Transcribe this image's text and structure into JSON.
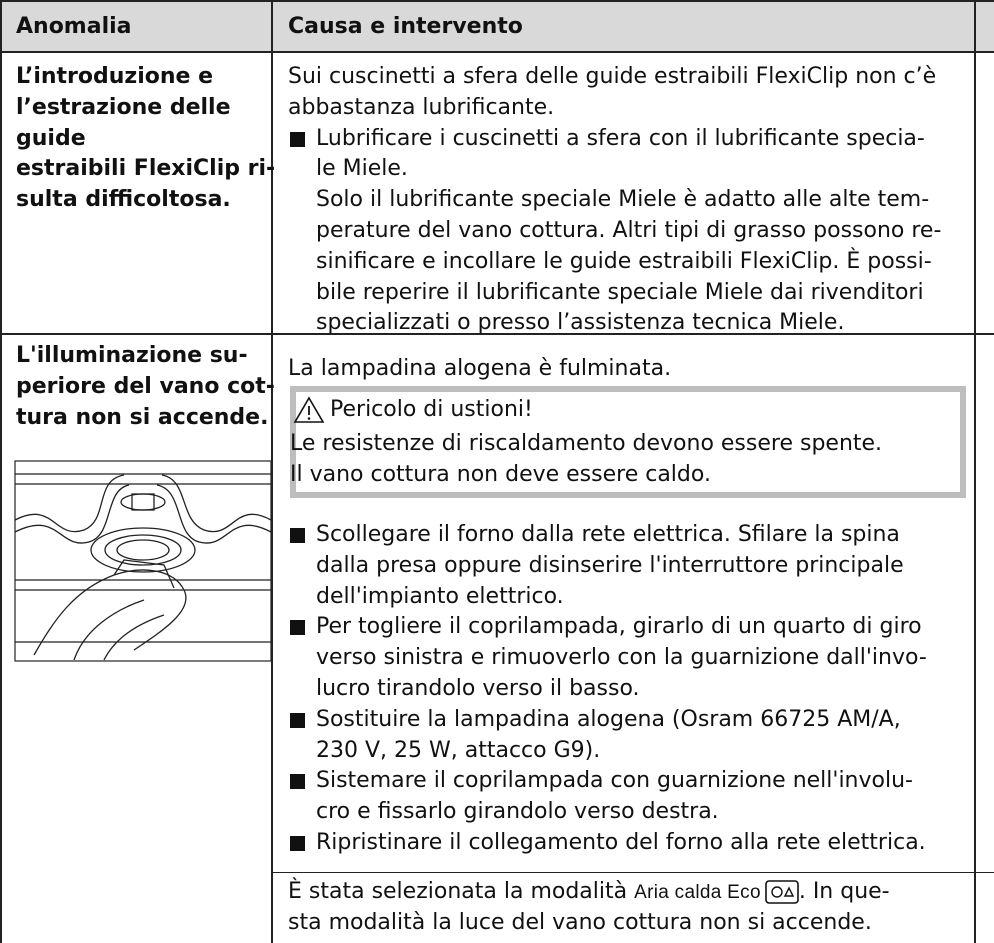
{
  "header": [
    "Anomalia",
    "Causa e intervento"
  ],
  "rows": [
    {
      "problem": [
        "L’introduzione e",
        "l’estrazione delle",
        "guide",
        "estraibili FlexiClip ri-",
        "sulta difficoltosa."
      ],
      "cause": [
        "Sui cuscinetti a sfera delle guide estraibili FlexiClip non c’è",
        "abbastanza lubrificante."
      ],
      "steps": [
        [
          "Lubrificare i cuscinetti a sfera con il lubrificante specia-",
          "le Miele.",
          "Solo il lubrificante speciale Miele è adatto alle alte tem-",
          "perature del vano cottura. Altri tipi di grasso possono re-",
          "sinificare e incollare le guide estraibili FlexiClip. È possi-",
          "bile reperire il lubrificante speciale Miele dai rivenditori",
          "specializzati o presso l’assistenza tecnica Miele."
        ]
      ]
    },
    {
      "problem": [
        "L'illuminazione su-",
        "periore del vano cot-",
        "tura non si accende."
      ],
      "cause": [
        "La lampadina alogena è fulminata."
      ],
      "warning": {
        "title": "Pericolo di ustioni!",
        "lines": [
          "Le resistenze di riscaldamento devono essere spente.",
          "Il vano cottura non deve essere caldo."
        ]
      },
      "steps": [
        [
          "Scollegare il forno dalla rete elettrica. Sfilare la spina",
          "dalla presa oppure disinserire l'interruttore principale",
          "dell'impianto elettrico."
        ],
        [
          "Per togliere il coprilampada, girarlo di un quarto di giro",
          "verso sinistra e rimuoverlo con la guarnizione dall'invo-",
          "lucro tirandolo verso il basso."
        ],
        [
          "Sostituire la lampadina alogena (Osram 66725 AM/A,",
          "230 V, 25 W, attacco G9)."
        ],
        [
          "Sistemare il coprilampada con guarnizione nell'involu-",
          "cro e fissarlo girandolo verso destra."
        ],
        [
          "Ripristinare il collegamento del forno alla rete elettrica."
        ]
      ],
      "cause2": {
        "before": "È stata selezionata la modalità",
        "mode": "Aria calda Eco",
        "after": ". In que-",
        "line2": "sta modalità la luce del vano cottura non si accende."
      }
    }
  ]
}
